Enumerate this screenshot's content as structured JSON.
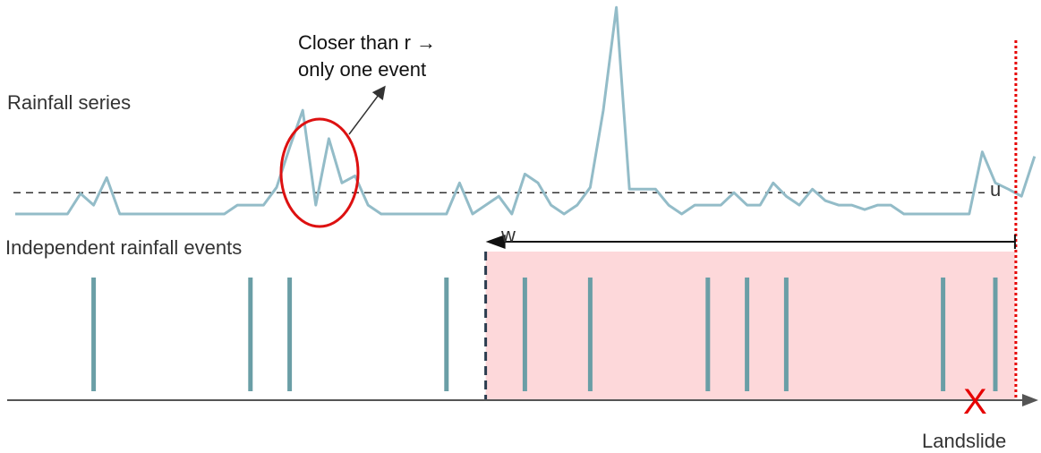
{
  "labels": {
    "rainfall_series": "Rainfall series",
    "independent_events": "Independent rainfall events",
    "annotation_line1": "Closer than r →",
    "annotation_line2": "only one event",
    "threshold": "u",
    "window": "w",
    "landslide": "Landslide",
    "landslide_mark": "X"
  },
  "colors": {
    "series_line": "#93bcc8",
    "event_bar": "#6a9ea6",
    "window_fill": "#fdd8da",
    "landslide_line": "#e60000",
    "ellipse": "#dd1111",
    "axis": "#555555",
    "threshold_line": "#333333"
  },
  "chart_data": {
    "type": "line",
    "title": "",
    "series": [
      {
        "values": [
          0,
          0,
          0,
          0,
          0,
          0.23,
          0.1,
          0.41,
          0,
          0,
          0,
          0,
          0,
          0,
          0,
          0,
          0,
          0.1,
          0.1,
          0.1,
          0.3,
          0.75,
          1.17,
          0.1,
          0.85,
          0.35,
          0.43,
          0.1,
          0,
          0,
          0,
          0,
          0,
          0,
          0.35,
          0,
          0.1,
          0.2,
          0,
          0.45,
          0.35,
          0.1,
          0,
          0.1,
          0.3,
          1.17,
          2.33,
          0.28,
          0.28,
          0.28,
          0.1,
          0,
          0.1,
          0.1,
          0.1,
          0.24,
          0.1,
          0.1,
          0.35,
          0.2,
          0.1,
          0.28,
          0.15,
          0.1,
          0.1,
          0.05,
          0.1,
          0.1,
          0,
          0,
          0,
          0,
          0,
          0,
          0.7,
          0.35,
          0.28,
          0.2,
          0.65
        ]
      }
    ],
    "threshold": 0.24,
    "events_x": [
      6,
      18,
      21,
      33,
      39,
      44,
      53,
      56,
      59,
      71,
      75
    ],
    "window": {
      "start": 36,
      "end": 76.5
    },
    "landslide_x": 76.5
  }
}
